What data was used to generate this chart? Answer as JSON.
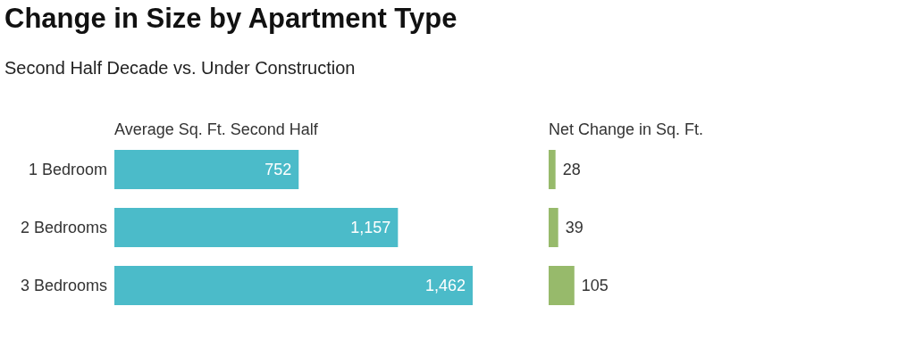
{
  "chart_data": [
    {
      "type": "bar",
      "orientation": "horizontal",
      "title": "Change in Size by Apartment Type",
      "subtitle": "Second Half Decade vs. Under Construction",
      "xlabel": "Average Sq. Ft. Second Half",
      "categories": [
        "1 Bedroom",
        "2 Bedrooms",
        "3 Bedrooms"
      ],
      "values": [
        752,
        1157,
        1462
      ],
      "value_labels": [
        "752",
        "1,157",
        "1,462"
      ],
      "color": "#4bbbc9",
      "tick_labels": "y"
    },
    {
      "type": "bar",
      "orientation": "horizontal",
      "xlabel": "Net Change in Sq. Ft.",
      "categories": [
        null,
        null,
        null
      ],
      "values": [
        28,
        39,
        105
      ],
      "value_labels": [
        "28",
        "39",
        "105"
      ],
      "color": "#97ba6b",
      "tick_labels": false
    }
  ]
}
